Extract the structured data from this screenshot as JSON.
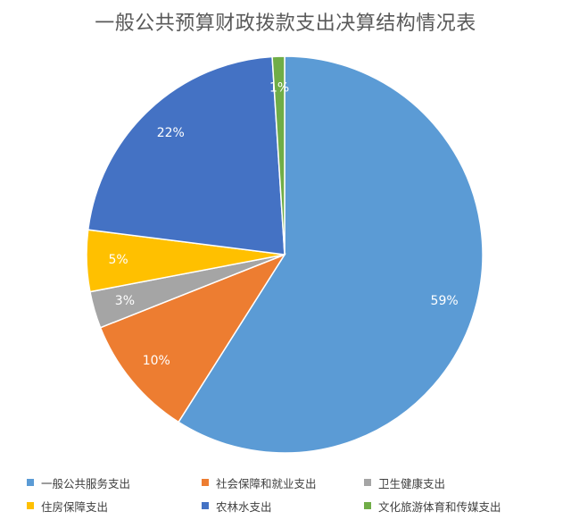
{
  "chart_data": {
    "type": "pie",
    "title": "一般公共预算财政拨款支出决算结构情况表",
    "legend_position": "bottom",
    "slices": [
      {
        "name": "一般公共服务支出",
        "value": 59,
        "label": "59%",
        "color": "#5B9BD5"
      },
      {
        "name": "社会保障和就业支出",
        "value": 10,
        "label": "10%",
        "color": "#ED7D31"
      },
      {
        "name": "卫生健康支出",
        "value": 3,
        "label": "3%",
        "color": "#A5A5A5"
      },
      {
        "name": "住房保障支出",
        "value": 5,
        "label": "5%",
        "color": "#FFC000"
      },
      {
        "name": "农林水支出",
        "value": 22,
        "label": "22%",
        "color": "#4472C4"
      },
      {
        "name": "文化旅游体育和传媒支出",
        "value": 1,
        "label": "1%",
        "color": "#70AD47"
      }
    ]
  }
}
